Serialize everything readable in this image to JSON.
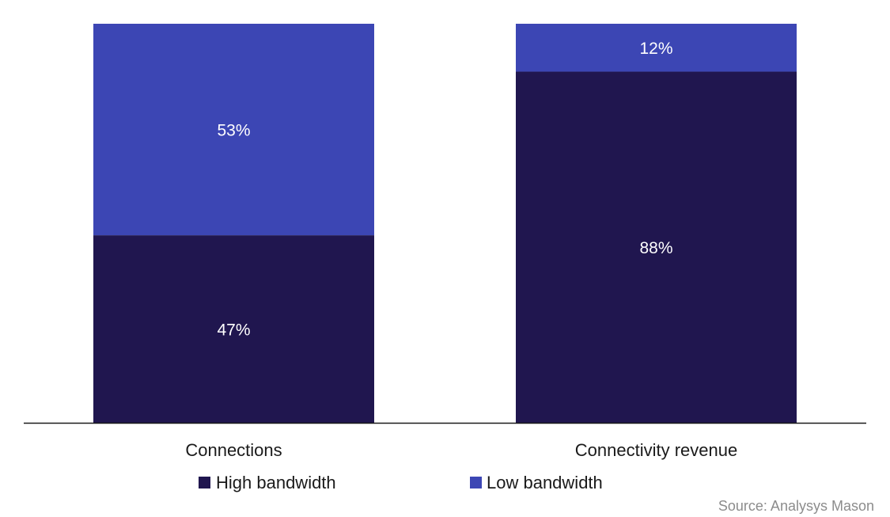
{
  "chart_data": {
    "type": "bar",
    "stacked": true,
    "normalized": true,
    "categories": [
      "Connections",
      "Connectivity revenue"
    ],
    "series": [
      {
        "name": "High bandwidth",
        "values": [
          47,
          88
        ],
        "labels": [
          "47%",
          "88%"
        ],
        "color": "#20164f"
      },
      {
        "name": "Low bandwidth",
        "values": [
          53,
          12
        ],
        "labels": [
          "53%",
          "12%"
        ],
        "color": "#3c46b4"
      }
    ],
    "ylim": [
      0,
      100
    ],
    "grid": false,
    "legend": "bottom"
  },
  "source": "Source: Analysys Mason",
  "colors": {
    "axis": "#1a1a1a",
    "label_text": "#ffffff",
    "source_text": "#8c8c8c"
  }
}
